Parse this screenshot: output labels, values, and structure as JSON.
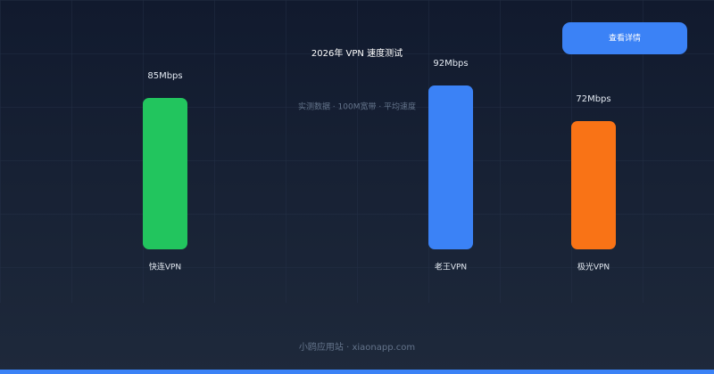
{
  "chart_data": {
    "type": "bar",
    "title": "2026年 VPN 速度测试",
    "subtitle": "实测数据 · 100M宽带 · 平均速度",
    "button": "查看详情",
    "footer": "小鸥应用站 · xiaonapp.com",
    "categories": [
      "快连VPN",
      null,
      "老王VPN",
      "极光VPN"
    ],
    "values": [
      85,
      null,
      92,
      72
    ],
    "value_labels": [
      "85Mbps",
      null,
      "92Mbps",
      "72Mbps"
    ],
    "colors": [
      "#22c55e",
      null,
      "#3b82f6",
      "#f97316"
    ],
    "ylim": [
      0,
      100
    ]
  }
}
